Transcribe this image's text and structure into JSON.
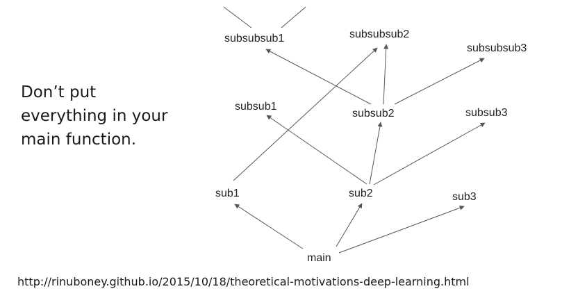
{
  "caption": {
    "lines": [
      "Don’t put",
      "everything in your",
      "main function."
    ]
  },
  "source_url": "http://rinuboney.github.io/2015/10/18/theoretical-motivations-deep-learning.html",
  "graph": {
    "nodes": [
      {
        "id": "subsubsub1",
        "label": "subsubsub1"
      },
      {
        "id": "subsubsub2",
        "label": "subsubsub2"
      },
      {
        "id": "subsubsub3",
        "label": "subsubsub3"
      },
      {
        "id": "subsub1",
        "label": "subsub1"
      },
      {
        "id": "subsub2",
        "label": "subsub2"
      },
      {
        "id": "subsub3",
        "label": "subsub3"
      },
      {
        "id": "sub1",
        "label": "sub1"
      },
      {
        "id": "sub2",
        "label": "sub2"
      },
      {
        "id": "sub3",
        "label": "sub3"
      },
      {
        "id": "main",
        "label": "main"
      }
    ],
    "edges": [
      {
        "from": "main",
        "to": "sub1"
      },
      {
        "from": "main",
        "to": "sub2"
      },
      {
        "from": "main",
        "to": "sub3"
      },
      {
        "from": "sub1",
        "to": "subsubsub2"
      },
      {
        "from": "sub2",
        "to": "subsub1"
      },
      {
        "from": "sub2",
        "to": "subsub2"
      },
      {
        "from": "sub2",
        "to": "subsub3"
      },
      {
        "from": "subsub2",
        "to": "subsubsub1"
      },
      {
        "from": "subsub2",
        "to": "subsubsub2"
      },
      {
        "from": "subsub2",
        "to": "subsubsub3"
      }
    ]
  }
}
